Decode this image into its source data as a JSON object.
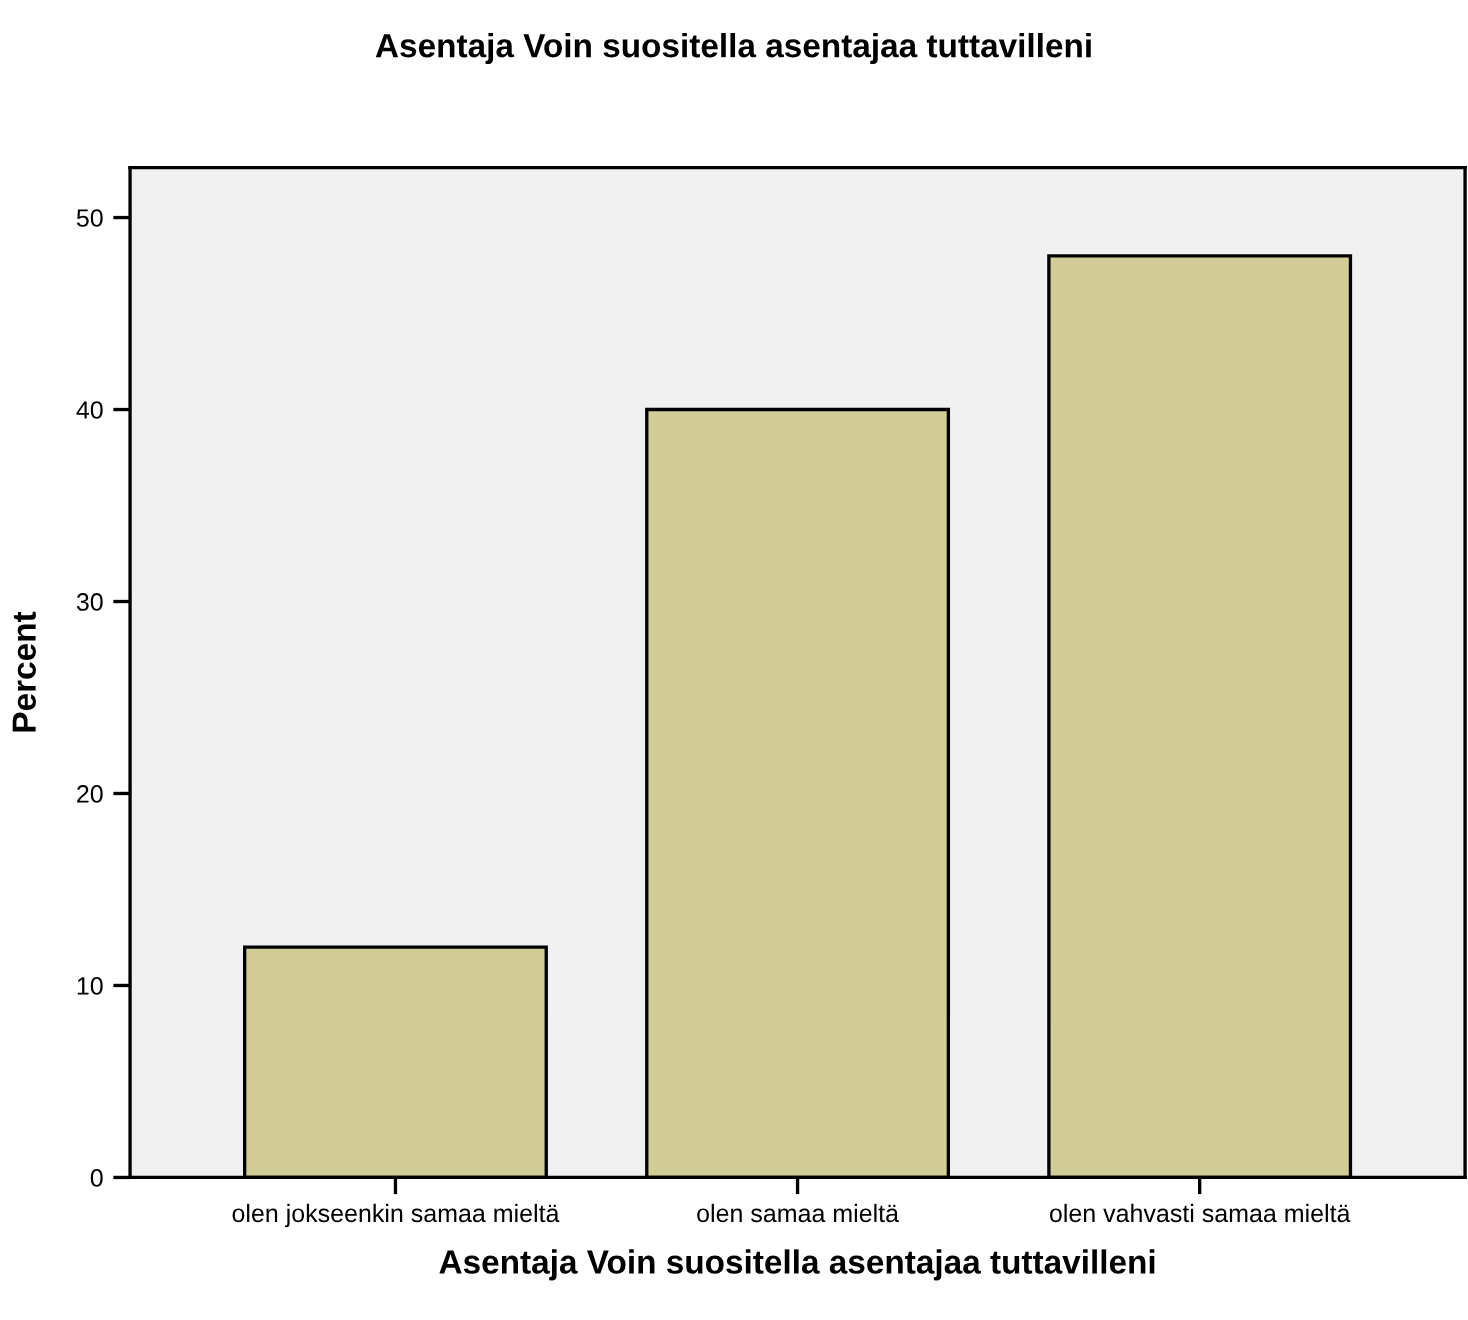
{
  "chart_data": {
    "type": "bar",
    "title": "Asentaja Voin suositella asentajaa tuttavilleni",
    "xlabel": "Asentaja Voin suositella asentajaa tuttavilleni",
    "ylabel": "Percent",
    "categories": [
      "olen jokseenkin samaa mieltä",
      "olen samaa mieltä",
      "olen vahvasti samaa mieltä"
    ],
    "values": [
      12,
      40,
      48
    ],
    "color": "#d2cd96",
    "ylim": [
      0,
      52.6
    ],
    "yticks": [
      0,
      10,
      20,
      30,
      40,
      50
    ],
    "grid": false,
    "legend": false
  }
}
